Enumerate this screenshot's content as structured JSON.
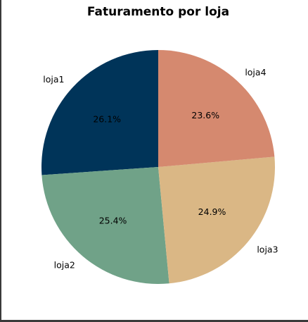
{
  "chart_data": {
    "type": "pie",
    "title": "Faturamento por loja",
    "start_angle_deg": 90,
    "direction": "counterclockwise",
    "slices": [
      {
        "label": "loja1",
        "value": 26.1,
        "pct_label": "26.1%",
        "color": "#003459"
      },
      {
        "label": "loja2",
        "value": 25.4,
        "pct_label": "25.4%",
        "color": "#70A288"
      },
      {
        "label": "loja3",
        "value": 24.9,
        "pct_label": "24.9%",
        "color": "#DAB785"
      },
      {
        "label": "loja4",
        "value": 23.6,
        "pct_label": "23.6%",
        "color": "#D5896F"
      }
    ]
  }
}
